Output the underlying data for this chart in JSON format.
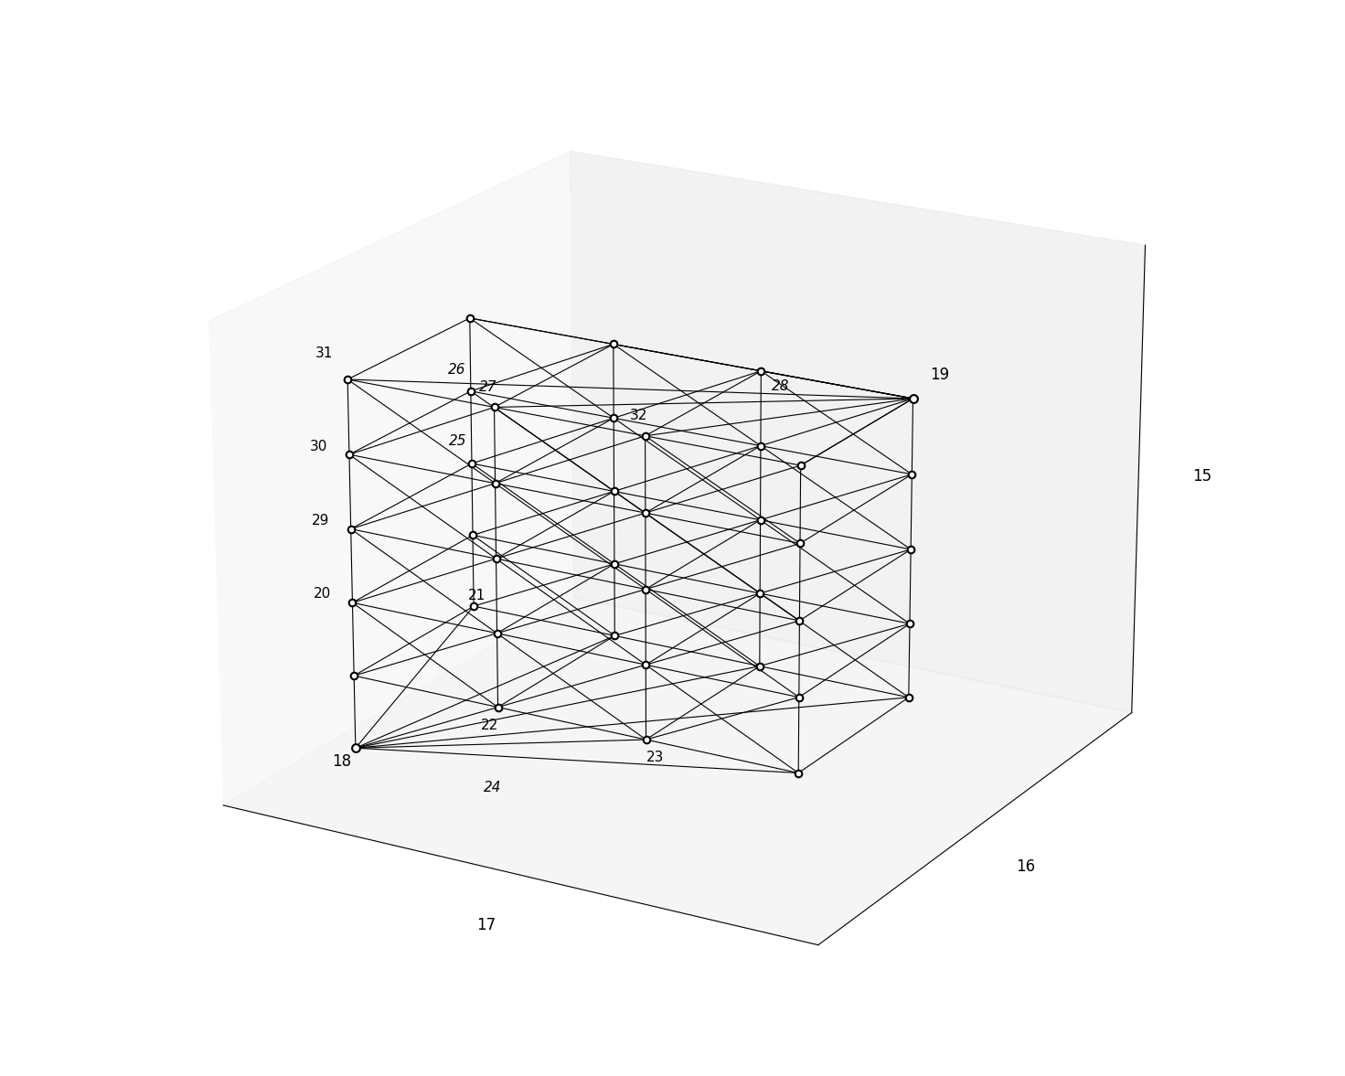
{
  "nodes": {
    "18": [
      0,
      0,
      0
    ],
    "19": [
      3,
      3,
      5
    ],
    "20": [
      0,
      0,
      2
    ],
    "21": [
      0,
      1,
      0
    ],
    "22": [
      1,
      0,
      0
    ],
    "23": [
      2,
      0,
      0
    ],
    "24": [
      1,
      0,
      0
    ],
    "25": [
      0,
      2,
      3
    ],
    "26": [
      0,
      3,
      4
    ],
    "27": [
      1,
      3,
      5
    ],
    "28": [
      2,
      3,
      5
    ],
    "29": [
      0,
      1,
      3
    ],
    "30": [
      0,
      2,
      4
    ],
    "31": [
      0,
      3,
      5
    ],
    "32": [
      1.5,
      3,
      5
    ]
  },
  "axis_labels": [
    "15",
    "16",
    "17"
  ],
  "node_color": "black",
  "line_color": "black",
  "bg_color": "white",
  "grid_color": "#888888"
}
